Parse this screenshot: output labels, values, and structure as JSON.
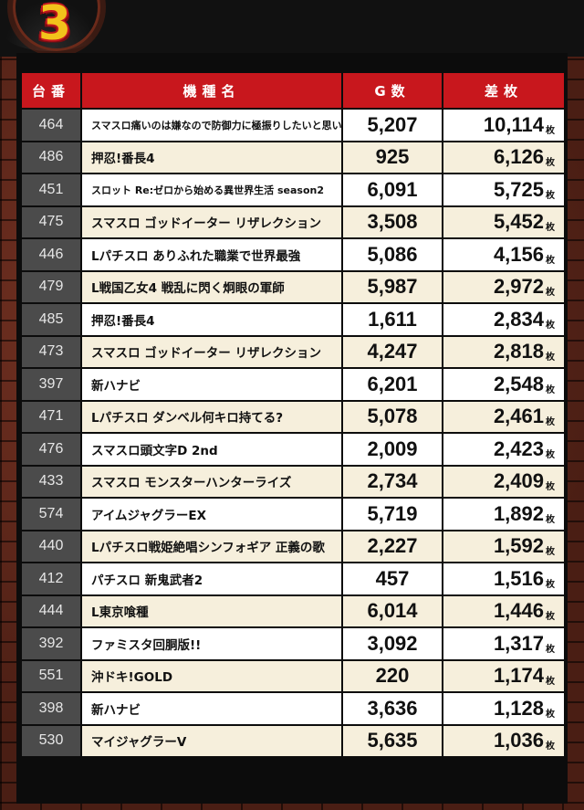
{
  "rank_badge": "3",
  "headers": {
    "machine_no": "台番",
    "model": "機種名",
    "games": "G数",
    "diff": "差枚"
  },
  "unit": "枚",
  "colors": {
    "header_red": "#c8171d",
    "badge_gold": "#f2c21b",
    "row_cream": "#f6efdc",
    "number_gray": "#4b4b4b"
  },
  "rows": [
    {
      "no": "464",
      "name": "スマスロ痛いのは嫌なので防御力に極振りしたいと思います。",
      "games": "5,207",
      "diff": "10,114"
    },
    {
      "no": "486",
      "name": "押忍!番長4",
      "games": "925",
      "diff": "6,126"
    },
    {
      "no": "451",
      "name": "スロット Re:ゼロから始める異世界生活 season2",
      "games": "6,091",
      "diff": "5,725"
    },
    {
      "no": "475",
      "name": "スマスロ ゴッドイーター リザレクション",
      "games": "3,508",
      "diff": "5,452"
    },
    {
      "no": "446",
      "name": "Lパチスロ ありふれた職業で世界最強",
      "games": "5,086",
      "diff": "4,156"
    },
    {
      "no": "479",
      "name": "L戦国乙女4 戦乱に閃く炯眼の軍師",
      "games": "5,987",
      "diff": "2,972"
    },
    {
      "no": "485",
      "name": "押忍!番長4",
      "games": "1,611",
      "diff": "2,834"
    },
    {
      "no": "473",
      "name": "スマスロ ゴッドイーター リザレクション",
      "games": "4,247",
      "diff": "2,818"
    },
    {
      "no": "397",
      "name": "新ハナビ",
      "games": "6,201",
      "diff": "2,548"
    },
    {
      "no": "471",
      "name": "Lパチスロ ダンベル何キロ持てる?",
      "games": "5,078",
      "diff": "2,461"
    },
    {
      "no": "476",
      "name": "スマスロ頭文字D 2nd",
      "games": "2,009",
      "diff": "2,423"
    },
    {
      "no": "433",
      "name": "スマスロ モンスターハンターライズ",
      "games": "2,734",
      "diff": "2,409"
    },
    {
      "no": "574",
      "name": "アイムジャグラーEX",
      "games": "5,719",
      "diff": "1,892"
    },
    {
      "no": "440",
      "name": "Lパチスロ戦姫絶唱シンフォギア 正義の歌",
      "games": "2,227",
      "diff": "1,592"
    },
    {
      "no": "412",
      "name": "パチスロ 新鬼武者2",
      "games": "457",
      "diff": "1,516"
    },
    {
      "no": "444",
      "name": "L東京喰種",
      "games": "6,014",
      "diff": "1,446"
    },
    {
      "no": "392",
      "name": "ファミスタ回胴版!!",
      "games": "3,092",
      "diff": "1,317"
    },
    {
      "no": "551",
      "name": "沖ドキ!GOLD",
      "games": "220",
      "diff": "1,174"
    },
    {
      "no": "398",
      "name": "新ハナビ",
      "games": "3,636",
      "diff": "1,128"
    },
    {
      "no": "530",
      "name": "マイジャグラーV",
      "games": "5,635",
      "diff": "1,036"
    }
  ]
}
